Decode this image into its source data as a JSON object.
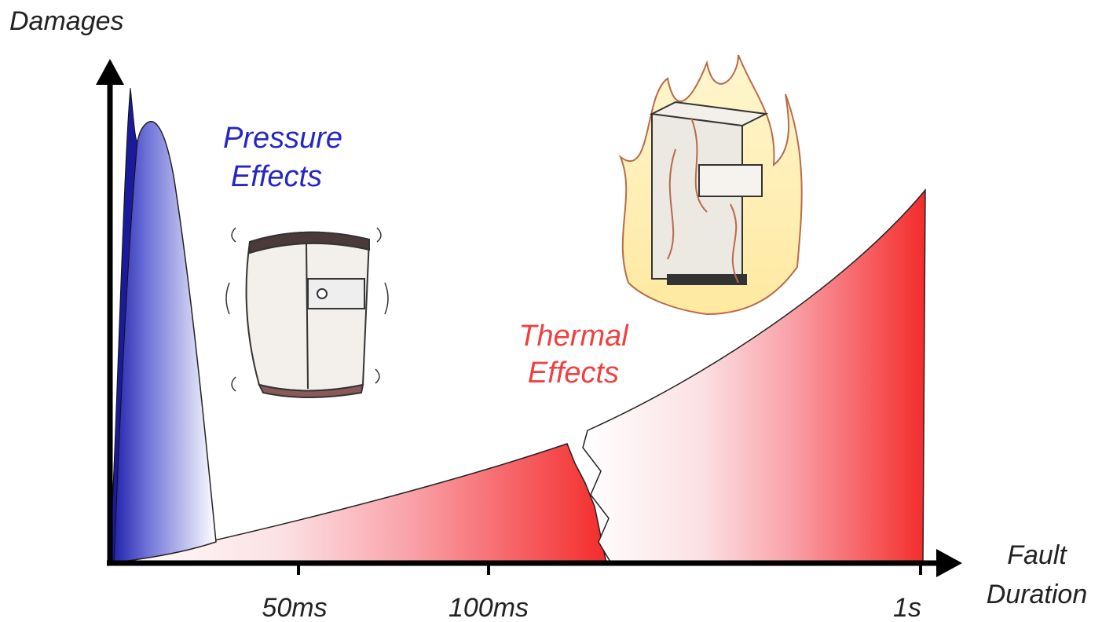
{
  "axes": {
    "y_label": "Damages",
    "x_label": [
      "Fault",
      "Duration"
    ],
    "ticks": [
      "50ms",
      "100ms",
      "1s"
    ]
  },
  "regions": {
    "pressure": [
      "Pressure",
      "Effects"
    ],
    "thermal": [
      "Thermal",
      "Effects"
    ]
  }
}
